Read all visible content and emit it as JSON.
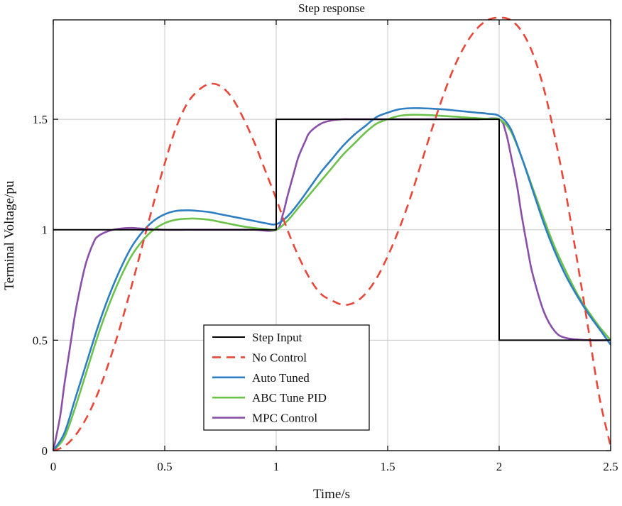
{
  "chart_data": {
    "type": "line",
    "title": "Step response",
    "xlabel": "Time/s",
    "ylabel": "Terminal Voltage/pu",
    "xlim": [
      0,
      2.5
    ],
    "ylim": [
      0,
      1.95
    ],
    "x_ticks": [
      0,
      0.5,
      1,
      1.5,
      2,
      2.5
    ],
    "x_tick_labels": [
      "0",
      "0.5",
      "1",
      "1.5",
      "2",
      "2.5"
    ],
    "y_ticks": [
      0,
      0.5,
      1,
      1.5
    ],
    "y_tick_labels": [
      "0",
      "0.5",
      "1",
      "1.5"
    ],
    "grid": true,
    "legend_position": "bottom-center",
    "series": [
      {
        "name": "Step Input",
        "color": "#000000",
        "dash": "solid",
        "x": [
          0,
          1,
          1,
          2,
          2,
          2.5
        ],
        "y": [
          1,
          1,
          1.5,
          1.5,
          0.5,
          0.5
        ]
      },
      {
        "name": "No Control",
        "color": "#E8473A",
        "dash": "dashed",
        "x": [
          0,
          0.05,
          0.1,
          0.15,
          0.2,
          0.25,
          0.3,
          0.35,
          0.4,
          0.45,
          0.5,
          0.55,
          0.6,
          0.65,
          0.7,
          0.75,
          0.8,
          0.85,
          0.9,
          0.95,
          1.0,
          1.05,
          1.1,
          1.15,
          1.2,
          1.25,
          1.3,
          1.35,
          1.4,
          1.45,
          1.5,
          1.55,
          1.6,
          1.65,
          1.7,
          1.75,
          1.8,
          1.85,
          1.9,
          1.95,
          2.0,
          2.05,
          2.1,
          2.15,
          2.2,
          2.25,
          2.3,
          2.35,
          2.4,
          2.45,
          2.5
        ],
        "y": [
          0.0,
          0.02,
          0.07,
          0.15,
          0.26,
          0.4,
          0.56,
          0.74,
          0.93,
          1.12,
          1.3,
          1.46,
          1.57,
          1.63,
          1.66,
          1.65,
          1.6,
          1.51,
          1.4,
          1.27,
          1.14,
          1.0,
          0.88,
          0.78,
          0.71,
          0.68,
          0.66,
          0.67,
          0.71,
          0.78,
          0.88,
          1.0,
          1.14,
          1.3,
          1.46,
          1.61,
          1.74,
          1.84,
          1.91,
          1.95,
          1.96,
          1.95,
          1.9,
          1.8,
          1.64,
          1.42,
          1.16,
          0.86,
          0.55,
          0.24,
          0.02
        ]
      },
      {
        "name": "Auto Tuned",
        "color": "#2E7EC2",
        "dash": "solid",
        "x": [
          0,
          0.05,
          0.1,
          0.15,
          0.2,
          0.25,
          0.3,
          0.35,
          0.4,
          0.45,
          0.5,
          0.55,
          0.6,
          0.65,
          0.7,
          0.75,
          0.8,
          0.85,
          0.9,
          0.95,
          1.0,
          1.05,
          1.1,
          1.15,
          1.2,
          1.25,
          1.3,
          1.35,
          1.4,
          1.45,
          1.5,
          1.55,
          1.6,
          1.65,
          1.7,
          1.75,
          1.8,
          1.85,
          1.9,
          1.95,
          2.0,
          2.05,
          2.1,
          2.15,
          2.2,
          2.25,
          2.3,
          2.35,
          2.4,
          2.45,
          2.5
        ],
        "y": [
          0.0,
          0.08,
          0.24,
          0.4,
          0.56,
          0.7,
          0.82,
          0.92,
          0.99,
          1.04,
          1.07,
          1.085,
          1.088,
          1.085,
          1.08,
          1.07,
          1.06,
          1.05,
          1.04,
          1.03,
          1.025,
          1.06,
          1.12,
          1.19,
          1.26,
          1.32,
          1.38,
          1.43,
          1.47,
          1.51,
          1.53,
          1.545,
          1.55,
          1.55,
          1.548,
          1.545,
          1.54,
          1.535,
          1.53,
          1.525,
          1.515,
          1.46,
          1.33,
          1.18,
          1.03,
          0.9,
          0.79,
          0.7,
          0.62,
          0.55,
          0.48
        ]
      },
      {
        "name": "ABC Tune PID",
        "color": "#6CC24A",
        "dash": "solid",
        "x": [
          0,
          0.05,
          0.1,
          0.15,
          0.2,
          0.25,
          0.3,
          0.35,
          0.4,
          0.45,
          0.5,
          0.55,
          0.6,
          0.65,
          0.7,
          0.75,
          0.8,
          0.85,
          0.9,
          0.95,
          1.0,
          1.05,
          1.1,
          1.15,
          1.2,
          1.25,
          1.3,
          1.35,
          1.4,
          1.45,
          1.5,
          1.55,
          1.6,
          1.65,
          1.7,
          1.75,
          1.8,
          1.85,
          1.9,
          1.95,
          2.0,
          2.05,
          2.1,
          2.15,
          2.2,
          2.25,
          2.3,
          2.35,
          2.4,
          2.45,
          2.5
        ],
        "y": [
          0.0,
          0.06,
          0.2,
          0.36,
          0.52,
          0.66,
          0.78,
          0.88,
          0.95,
          1.0,
          1.03,
          1.045,
          1.05,
          1.05,
          1.045,
          1.035,
          1.025,
          1.015,
          1.008,
          1.003,
          1.0,
          1.04,
          1.1,
          1.16,
          1.22,
          1.28,
          1.34,
          1.39,
          1.44,
          1.48,
          1.5,
          1.515,
          1.52,
          1.52,
          1.518,
          1.515,
          1.512,
          1.508,
          1.505,
          1.502,
          1.5,
          1.45,
          1.33,
          1.19,
          1.05,
          0.92,
          0.81,
          0.71,
          0.63,
          0.56,
          0.5
        ]
      },
      {
        "name": "MPC Control",
        "color": "#8A4FA8",
        "dash": "solid",
        "x": [
          0,
          0.03,
          0.05,
          0.08,
          0.1,
          0.13,
          0.15,
          0.18,
          0.2,
          0.25,
          0.3,
          0.35,
          0.4,
          0.5,
          0.6,
          0.7,
          0.8,
          0.9,
          1.0,
          1.03,
          1.05,
          1.08,
          1.1,
          1.13,
          1.15,
          1.2,
          1.25,
          1.3,
          1.35,
          1.5,
          1.7,
          1.9,
          2.0,
          2.03,
          2.05,
          2.08,
          2.1,
          2.13,
          2.15,
          2.2,
          2.25,
          2.3,
          2.4,
          2.5
        ],
        "y": [
          0.0,
          0.15,
          0.3,
          0.5,
          0.63,
          0.78,
          0.86,
          0.94,
          0.97,
          0.995,
          1.005,
          1.008,
          1.005,
          1.0,
          1.0,
          1.0,
          1.0,
          1.0,
          1.0,
          1.07,
          1.15,
          1.26,
          1.33,
          1.4,
          1.44,
          1.48,
          1.495,
          1.5,
          1.5,
          1.5,
          1.5,
          1.5,
          1.5,
          1.44,
          1.35,
          1.2,
          1.07,
          0.9,
          0.8,
          0.63,
          0.54,
          0.51,
          0.5,
          0.5
        ]
      }
    ]
  }
}
